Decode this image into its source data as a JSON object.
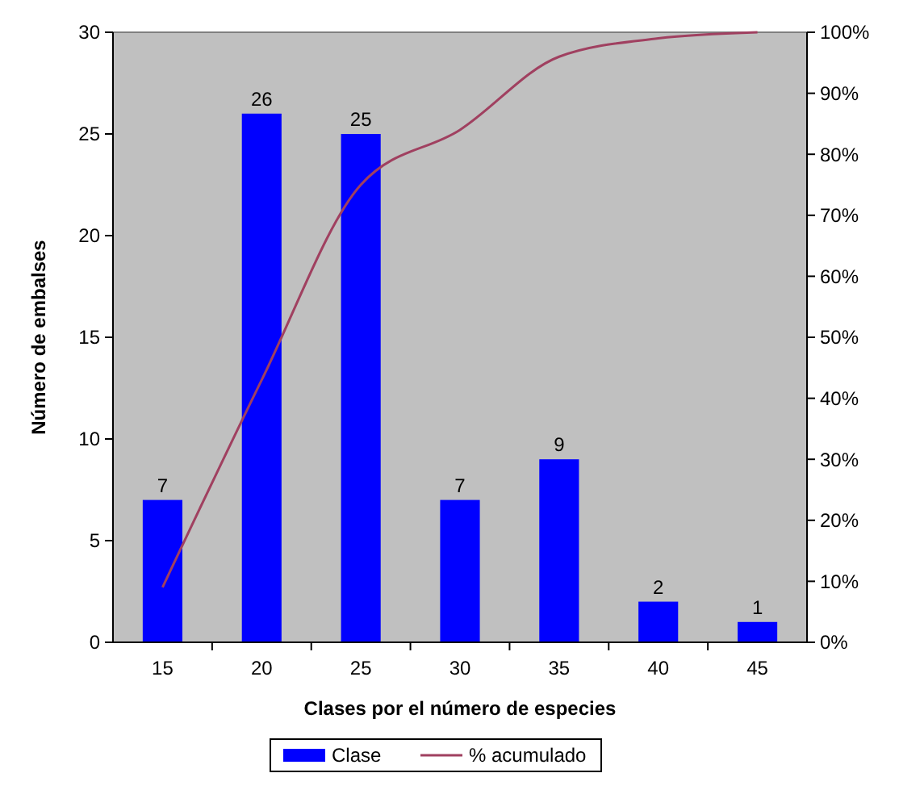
{
  "chart_data": {
    "type": "bar",
    "xlabel": "Clases por el número de especies",
    "ylabel": "Número de embalses",
    "categories": [
      "15",
      "20",
      "25",
      "30",
      "35",
      "40",
      "45"
    ],
    "series": [
      {
        "name": "Clase",
        "color": "#0000ff",
        "values": [
          7,
          26,
          25,
          7,
          9,
          2,
          1
        ],
        "value_labels": [
          "7",
          "26",
          "25",
          "7",
          "9",
          "2",
          "1"
        ]
      },
      {
        "name": "% acumulado",
        "type": "line",
        "axis": "y2",
        "color": "#a04060",
        "values": [
          9,
          43,
          75,
          84,
          96,
          99,
          100
        ]
      }
    ],
    "ylim": [
      0,
      30
    ],
    "yticks": [
      0,
      5,
      10,
      15,
      20,
      25,
      30
    ],
    "y2lim": [
      0,
      100
    ],
    "y2ticks": [
      {
        "value": 0,
        "label": "0%"
      },
      {
        "value": 10,
        "label": "10%"
      },
      {
        "value": 20,
        "label": "20%"
      },
      {
        "value": 30,
        "label": "30%"
      },
      {
        "value": 40,
        "label": "40%"
      },
      {
        "value": 50,
        "label": "50%"
      },
      {
        "value": 60,
        "label": "60%"
      },
      {
        "value": 70,
        "label": "70%"
      },
      {
        "value": 80,
        "label": "80%"
      },
      {
        "value": 90,
        "label": "90%"
      },
      {
        "value": 100,
        "label": "100%"
      }
    ],
    "grid": false,
    "legend": "bottom",
    "marker": "none",
    "line_style": "solid"
  }
}
